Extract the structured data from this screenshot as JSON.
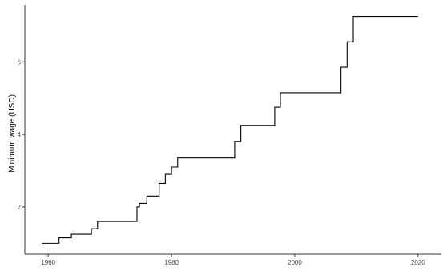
{
  "chart_data": {
    "type": "line",
    "step": true,
    "ylabel": "Minimum wage (USD)",
    "xlabel": "",
    "xlim": [
      1956.2,
      2023.8
    ],
    "ylim": [
      0.7,
      7.57
    ],
    "x_ticks": [
      1960,
      1980,
      2000,
      2020
    ],
    "x_tick_labels": [
      "1960",
      "1980",
      "2000",
      "2020"
    ],
    "y_ticks": [
      2,
      4,
      6
    ],
    "y_tick_labels": [
      "2",
      "4",
      "6"
    ],
    "grid": false,
    "colors": {
      "line": "#000000",
      "axis": "#333333",
      "tick_label": "#4d4d4d"
    },
    "series": [
      {
        "x": [
          1959,
          1961.75,
          1963.75,
          1967,
          1968,
          1974.4,
          1974.8,
          1976,
          1978,
          1979,
          1980,
          1981,
          1990.25,
          1991.25,
          1996.75,
          1997.67,
          2007.5,
          2008.5,
          2009.5,
          2020
        ],
        "y": [
          1.0,
          1.15,
          1.25,
          1.4,
          1.6,
          2.0,
          2.1,
          2.3,
          2.65,
          2.9,
          3.1,
          3.35,
          3.8,
          4.25,
          4.75,
          5.15,
          5.85,
          6.55,
          7.25,
          7.25
        ]
      }
    ]
  }
}
